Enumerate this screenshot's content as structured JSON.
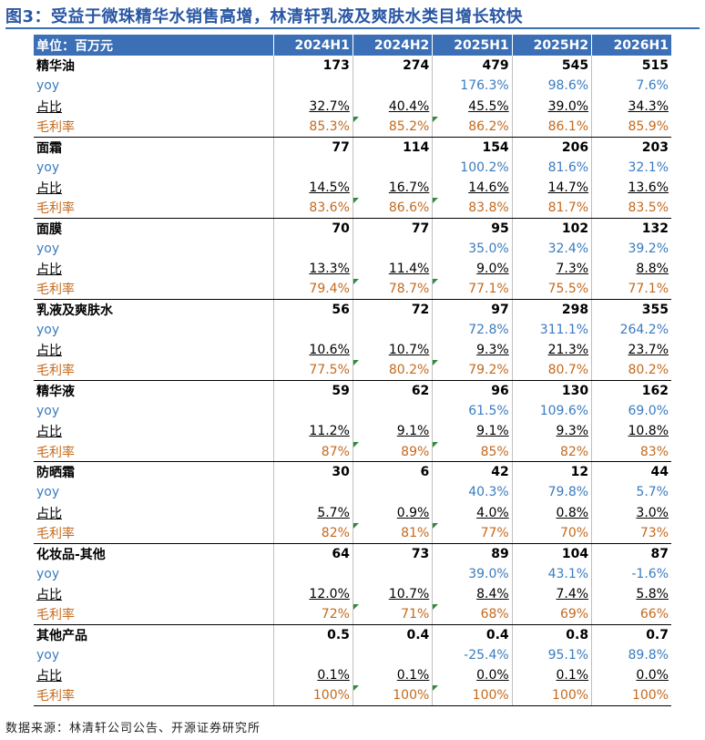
{
  "title": "图3：受益于微珠精华水销售高增，林清轩乳液及爽肤水类目增长较快",
  "header": {
    "unit": "单位：百万元",
    "periods": [
      "2024H1",
      "2024H2",
      "2025H1",
      "2025H2",
      "2026H1"
    ]
  },
  "row_labels": {
    "yoy": "yoy",
    "share": "占比",
    "margin": "毛利率"
  },
  "categories": [
    {
      "name": "精华油",
      "revenue": [
        "173",
        "274",
        "479",
        "545",
        "515"
      ],
      "yoy": [
        "",
        "",
        "176.3%",
        "98.6%",
        "7.6%"
      ],
      "share": [
        "32.7%",
        "40.4%",
        "45.5%",
        "39.0%",
        "34.3%"
      ],
      "margin": [
        "85.3%",
        "85.2%",
        "86.2%",
        "86.1%",
        "85.9%"
      ]
    },
    {
      "name": "面霜",
      "revenue": [
        "77",
        "114",
        "154",
        "206",
        "203"
      ],
      "yoy": [
        "",
        "",
        "100.2%",
        "81.6%",
        "32.1%"
      ],
      "share": [
        "14.5%",
        "16.7%",
        "14.6%",
        "14.7%",
        "13.6%"
      ],
      "margin": [
        "83.6%",
        "86.6%",
        "83.8%",
        "81.7%",
        "83.5%"
      ]
    },
    {
      "name": "面膜",
      "revenue": [
        "70",
        "77",
        "95",
        "102",
        "132"
      ],
      "yoy": [
        "",
        "",
        "35.0%",
        "32.4%",
        "39.2%"
      ],
      "share": [
        "13.3%",
        "11.4%",
        "9.0%",
        "7.3%",
        "8.8%"
      ],
      "margin": [
        "79.4%",
        "78.7%",
        "77.1%",
        "75.5%",
        "77.1%"
      ]
    },
    {
      "name": "乳液及爽肤水",
      "revenue": [
        "56",
        "72",
        "97",
        "298",
        "355"
      ],
      "yoy": [
        "",
        "",
        "72.8%",
        "311.1%",
        "264.2%"
      ],
      "share": [
        "10.6%",
        "10.7%",
        "9.3%",
        "21.3%",
        "23.7%"
      ],
      "margin": [
        "77.5%",
        "80.2%",
        "79.2%",
        "80.7%",
        "80.2%"
      ]
    },
    {
      "name": "精华液",
      "revenue": [
        "59",
        "62",
        "96",
        "130",
        "162"
      ],
      "yoy": [
        "",
        "",
        "61.5%",
        "109.6%",
        "69.0%"
      ],
      "share": [
        "11.2%",
        "9.1%",
        "9.1%",
        "9.3%",
        "10.8%"
      ],
      "margin": [
        "87%",
        "89%",
        "85%",
        "82%",
        "83%"
      ]
    },
    {
      "name": "防晒霜",
      "revenue": [
        "30",
        "6",
        "42",
        "12",
        "44"
      ],
      "yoy": [
        "",
        "",
        "40.3%",
        "79.8%",
        "5.7%"
      ],
      "share": [
        "5.7%",
        "0.9%",
        "4.0%",
        "0.8%",
        "3.0%"
      ],
      "margin": [
        "82%",
        "81%",
        "77%",
        "70%",
        "73%"
      ]
    },
    {
      "name": "化妆品-其他",
      "revenue": [
        "64",
        "73",
        "89",
        "104",
        "87"
      ],
      "yoy": [
        "",
        "",
        "39.0%",
        "43.1%",
        "-1.6%"
      ],
      "share": [
        "12.0%",
        "10.7%",
        "8.4%",
        "7.4%",
        "5.8%"
      ],
      "margin": [
        "72%",
        "71%",
        "68%",
        "69%",
        "66%"
      ]
    },
    {
      "name": "其他产品",
      "revenue": [
        "0.5",
        "0.4",
        "0.4",
        "0.8",
        "0.7"
      ],
      "yoy": [
        "",
        "",
        "-25.4%",
        "95.1%",
        "89.8%"
      ],
      "share": [
        "0.1%",
        "0.1%",
        "0.0%",
        "0.1%",
        "0.0%"
      ],
      "margin": [
        "100%",
        "100%",
        "100%",
        "100%",
        "100%"
      ]
    }
  ],
  "source": "数据来源：林清轩公司公告、开源证券研究所",
  "colors": {
    "header_bg": "#3b6fb6",
    "yoy_text": "#3a7bbf",
    "margin_text": "#c46a1e",
    "flag": "#2e8b3a"
  }
}
